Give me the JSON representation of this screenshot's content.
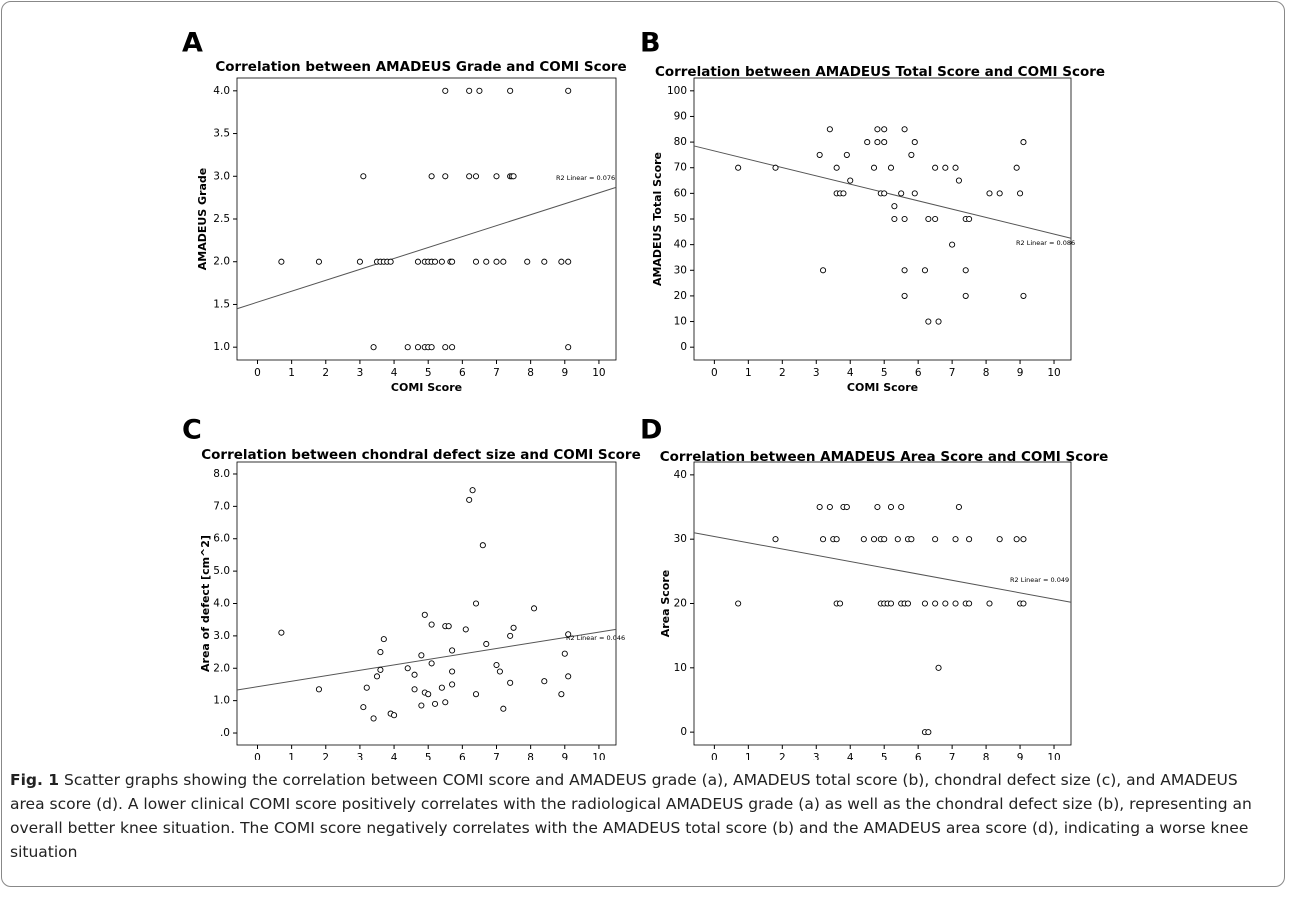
{
  "chart_data": [
    {
      "type": "scatter",
      "panel": "A",
      "title": "Correlation between AMADEUS Grade and COMI Score",
      "x_label": "COMI Score",
      "y_label": "AMADEUS Grade",
      "x": [
        5.5,
        6.2,
        6.5,
        7.4,
        9.1,
        3.1,
        5.1,
        5.5,
        6.2,
        6.4,
        7.0,
        7.4,
        7.45,
        7.5,
        0.7,
        1.8,
        3.0,
        3.5,
        3.6,
        3.7,
        3.8,
        3.9,
        4.7,
        4.9,
        5.0,
        5.1,
        5.2,
        5.4,
        5.65,
        5.7,
        6.4,
        6.7,
        7.0,
        7.2,
        7.9,
        8.4,
        8.9,
        9.1,
        3.4,
        4.4,
        4.7,
        4.9,
        5.0,
        5.1,
        5.5,
        5.7,
        9.1
      ],
      "values": [
        4,
        4,
        4,
        4,
        4,
        3,
        3,
        3,
        3,
        3,
        3,
        3,
        3,
        3,
        2,
        2,
        2,
        2,
        2,
        2,
        2,
        2,
        2,
        2,
        2,
        2,
        2,
        2,
        2,
        2,
        2,
        2,
        2,
        2,
        2,
        2,
        2,
        2,
        1,
        1,
        1,
        1,
        1,
        1,
        1,
        1,
        1
      ],
      "xlim": [
        -0.6,
        10.5
      ],
      "ylim": [
        0.85,
        4.15
      ],
      "xticks": [
        0,
        1,
        2,
        3,
        4,
        5,
        6,
        7,
        8,
        9,
        10
      ],
      "yticks": [
        {
          "value": 1,
          "label": "1.0"
        },
        {
          "value": 1.5,
          "label": "1.5"
        },
        {
          "value": 2,
          "label": "2.0"
        },
        {
          "value": 2.5,
          "label": "2.5"
        },
        {
          "value": 3,
          "label": "3.0"
        },
        {
          "value": 3.5,
          "label": "3.5"
        },
        {
          "value": 4,
          "label": "4.0"
        }
      ],
      "fit_line": {
        "x": [
          -0.6,
          10.5
        ],
        "y": [
          1.45,
          2.87
        ]
      },
      "fit_label": "R2 Linear = 0.076"
    },
    {
      "type": "scatter",
      "panel": "B",
      "title": "Correlation between AMADEUS Total Score and COMI Score",
      "x_label": "COMI Score",
      "y_label": "AMADEUS Total Score",
      "x": [
        0.7,
        1.8,
        3.1,
        3.2,
        3.4,
        3.6,
        3.6,
        3.7,
        3.8,
        3.9,
        4.0,
        4.5,
        4.7,
        4.8,
        4.8,
        4.9,
        5.0,
        5.0,
        5.0,
        5.2,
        5.3,
        5.3,
        5.5,
        5.6,
        5.6,
        5.6,
        5.6,
        5.8,
        5.9,
        5.9,
        6.2,
        6.3,
        6.3,
        6.5,
        6.5,
        6.6,
        6.8,
        7.0,
        7.1,
        7.2,
        7.4,
        7.4,
        7.5,
        7.4,
        8.1,
        8.4,
        8.9,
        9.0,
        9.1,
        9.1
      ],
      "values": [
        70,
        70,
        75,
        30,
        85,
        70,
        60,
        60,
        60,
        75,
        65,
        80,
        70,
        80,
        85,
        60,
        85,
        80,
        60,
        70,
        50,
        55,
        60,
        85,
        50,
        30,
        20,
        75,
        60,
        80,
        30,
        50,
        10,
        50,
        70,
        10,
        70,
        40,
        70,
        65,
        50,
        30,
        50,
        20,
        60,
        60,
        70,
        60,
        80,
        20
      ],
      "xlim": [
        -0.6,
        10.5
      ],
      "ylim": [
        -5,
        105
      ],
      "xticks": [
        0,
        1,
        2,
        3,
        4,
        5,
        6,
        7,
        8,
        9,
        10
      ],
      "yticks": [
        0,
        10,
        20,
        30,
        40,
        50,
        60,
        70,
        80,
        90,
        100
      ],
      "fit_line": {
        "x": [
          -0.6,
          10.5
        ],
        "y": [
          78.5,
          42.5
        ]
      },
      "fit_label": "R2 Linear = 0.086"
    },
    {
      "type": "scatter",
      "panel": "C",
      "title": "Correlation between chondral defect size and COMI Score",
      "x_label": "COMI Score",
      "y_label": "Area of defect [cm^2]",
      "x": [
        0.7,
        1.8,
        3.1,
        3.2,
        3.4,
        3.5,
        3.6,
        3.6,
        3.7,
        3.9,
        4.0,
        4.4,
        4.6,
        4.6,
        4.8,
        4.8,
        4.9,
        4.9,
        5.0,
        5.1,
        5.1,
        5.2,
        5.4,
        5.5,
        5.5,
        5.6,
        5.7,
        5.7,
        5.7,
        6.1,
        6.2,
        6.3,
        6.4,
        6.4,
        6.6,
        6.7,
        7.0,
        7.1,
        7.2,
        7.4,
        7.4,
        7.5,
        8.1,
        8.4,
        8.9,
        9.0,
        9.1,
        9.1
      ],
      "values": [
        3.1,
        1.35,
        0.8,
        1.4,
        0.45,
        1.75,
        2.5,
        1.95,
        2.9,
        0.6,
        0.55,
        2.0,
        1.8,
        1.35,
        2.4,
        0.85,
        1.25,
        3.65,
        1.2,
        3.35,
        2.15,
        0.9,
        1.4,
        0.95,
        3.3,
        3.3,
        2.55,
        1.9,
        1.5,
        3.2,
        7.2,
        7.5,
        4.0,
        1.2,
        5.8,
        2.75,
        2.1,
        1.9,
        0.75,
        3.0,
        1.55,
        3.25,
        3.85,
        1.6,
        1.2,
        2.45,
        3.05,
        1.75
      ],
      "xlim": [
        -0.6,
        10.5
      ],
      "ylim": [
        -0.37,
        8.37
      ],
      "xticks": [
        0,
        1,
        2,
        3,
        4,
        5,
        6,
        7,
        8,
        9,
        10
      ],
      "yticks": [
        {
          "value": 0,
          "label": ".0"
        },
        {
          "value": 1,
          "label": "1.0"
        },
        {
          "value": 2,
          "label": "2.0"
        },
        {
          "value": 3,
          "label": "3.0"
        },
        {
          "value": 4,
          "label": "4.0"
        },
        {
          "value": 5,
          "label": "5.0"
        },
        {
          "value": 6,
          "label": "6.0"
        },
        {
          "value": 7,
          "label": "7.0"
        },
        {
          "value": 8,
          "label": "8.0"
        }
      ],
      "fit_line": {
        "x": [
          -0.6,
          10.5
        ],
        "y": [
          1.33,
          3.2
        ]
      },
      "fit_label": "R2 Linear = 0.046"
    },
    {
      "type": "scatter",
      "panel": "D",
      "title": "Correlation between AMADEUS Area Score and COMI Score",
      "x_label": "COMI Score",
      "y_label": "Area Score",
      "x": [
        0.7,
        1.8,
        3.1,
        3.2,
        3.4,
        3.5,
        3.6,
        3.6,
        3.7,
        3.8,
        3.9,
        4.4,
        4.7,
        4.8,
        4.9,
        4.9,
        5.0,
        5.0,
        5.1,
        5.2,
        5.2,
        5.4,
        5.5,
        5.5,
        5.6,
        5.7,
        5.7,
        5.8,
        6.2,
        6.3,
        6.2,
        6.5,
        6.5,
        6.6,
        6.8,
        7.1,
        7.1,
        7.2,
        7.4,
        7.5,
        7.5,
        8.1,
        8.4,
        8.9,
        9.0,
        9.1,
        9.1
      ],
      "values": [
        20,
        30,
        35,
        30,
        35,
        30,
        30,
        20,
        20,
        35,
        35,
        30,
        30,
        35,
        20,
        30,
        30,
        20,
        20,
        35,
        20,
        30,
        35,
        20,
        20,
        30,
        20,
        30,
        0,
        0,
        20,
        30,
        20,
        10,
        20,
        30,
        20,
        35,
        20,
        30,
        20,
        20,
        30,
        30,
        20,
        30,
        20
      ],
      "xlim": [
        -0.6,
        10.5
      ],
      "ylim": [
        -2,
        42
      ],
      "xticks": [
        0,
        1,
        2,
        3,
        4,
        5,
        6,
        7,
        8,
        9,
        10
      ],
      "yticks": [
        0,
        10,
        20,
        30,
        40
      ],
      "fit_line": {
        "x": [
          -0.6,
          10.5
        ],
        "y": [
          31,
          20.2
        ]
      },
      "fit_label": "R2 Linear = 0.049"
    }
  ],
  "caption": {
    "label": "Fig. 1",
    "text": "Scatter graphs showing the correlation between COMI score and AMADEUS grade (a), AMADEUS total score (b), chondral defect size (c), and AMADEUS area score (d). A lower clinical COMI score positively correlates with the radiological AMADEUS grade (a) as well as the chondral defect size (b), representing an overall better knee situation. The COMI score negatively correlates with the AMADEUS total score (b) and the AMADEUS area score (d), indicating a worse knee situation"
  }
}
